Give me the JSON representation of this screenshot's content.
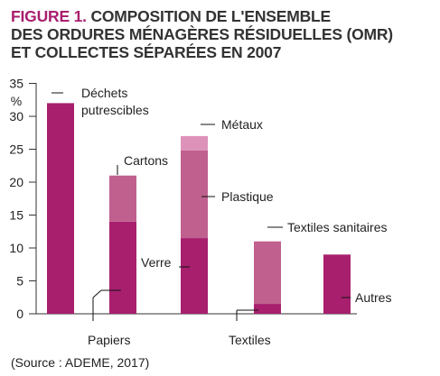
{
  "title": {
    "figure_label": "FIGURE 1.",
    "line1": " COMPOSITION DE L'ENSEMBLE",
    "line2": "DES ORDURES MÉNAGÈRES RÉSIDUELLES (OMR)",
    "line3": "ET COLLECTES SÉPARÉES EN 2007"
  },
  "source": "(Source : ADEME, 2017)",
  "colors": {
    "dark": "#a81f6e",
    "mid": "#c0608f",
    "light": "#dd92b9",
    "axis": "#333333"
  },
  "chart_data": {
    "type": "bar",
    "stacked": true,
    "ylabel": "%",
    "ylim": [
      0,
      35
    ],
    "yticks": [
      0,
      5,
      10,
      15,
      20,
      25,
      30,
      35
    ],
    "grid": false,
    "bars": [
      {
        "segments": [
          {
            "label": "Déchets putrescibles",
            "value": 32,
            "shade": "dark"
          }
        ]
      },
      {
        "segments": [
          {
            "label": "Papiers",
            "value": 14,
            "shade": "dark"
          },
          {
            "label": "Cartons",
            "value": 7,
            "shade": "mid"
          }
        ]
      },
      {
        "segments": [
          {
            "label": "Verre",
            "value": 11.5,
            "shade": "dark"
          },
          {
            "label": "Plastique",
            "value": 13.3,
            "shade": "mid"
          },
          {
            "label": "Métaux",
            "value": 2.2,
            "shade": "light"
          }
        ]
      },
      {
        "segments": [
          {
            "label": "Textiles",
            "value": 1.5,
            "shade": "dark"
          },
          {
            "label": "Textiles sanitaires",
            "value": 9.5,
            "shade": "mid"
          }
        ]
      },
      {
        "segments": [
          {
            "label": "Autres",
            "value": 9,
            "shade": "dark"
          }
        ]
      }
    ]
  }
}
